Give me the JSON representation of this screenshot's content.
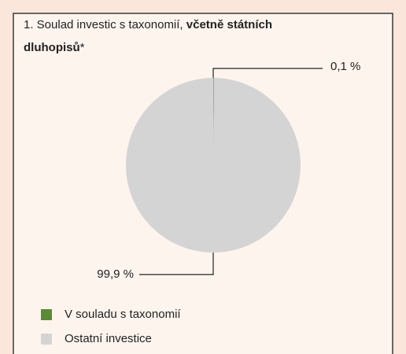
{
  "chart_data": {
    "type": "pie",
    "title": [
      "1. Soulad investic s taxonomií,",
      "včetně státních",
      "dluhopisů",
      "*"
    ],
    "categories": [
      "V souladu s taxonomií",
      "Ostatní investice"
    ],
    "values": [
      0.1,
      99.9
    ],
    "value_labels": [
      "0,1 %",
      "99,9 %"
    ],
    "colors": [
      "#5a8a35",
      "#d4d4d4"
    ],
    "legend": "bottom-left"
  }
}
